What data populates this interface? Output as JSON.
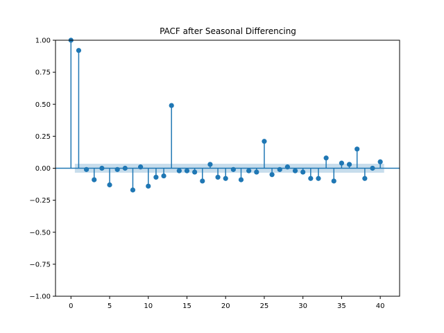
{
  "chart_data": {
    "type": "stem",
    "title": "PACF after Seasonal Differencing",
    "xlabel": "",
    "ylabel": "",
    "xlim": [
      -2,
      42.5
    ],
    "ylim": [
      -1.0,
      1.0
    ],
    "x_ticks": [
      0,
      5,
      10,
      15,
      20,
      25,
      30,
      35,
      40
    ],
    "x_tick_labels": [
      "0",
      "5",
      "10",
      "15",
      "20",
      "25",
      "30",
      "35",
      "40"
    ],
    "y_ticks": [
      -1.0,
      -0.75,
      -0.5,
      -0.25,
      0.0,
      0.25,
      0.5,
      0.75,
      1.0
    ],
    "y_tick_labels": [
      "−1.00",
      "−0.75",
      "−0.50",
      "−0.25",
      "0.00",
      "0.25",
      "0.50",
      "0.75",
      "1.00"
    ],
    "grid": false,
    "legend": "none",
    "series": [
      {
        "x": [
          0,
          1,
          2,
          3,
          4,
          5,
          6,
          7,
          8,
          9,
          10,
          11,
          12,
          13,
          14,
          15,
          16,
          17,
          18,
          19,
          20,
          21,
          22,
          23,
          24,
          25,
          26,
          27,
          28,
          29,
          30,
          31,
          32,
          33,
          34,
          35,
          36,
          37,
          38,
          39,
          40
        ],
        "values": [
          1.0,
          0.92,
          -0.01,
          -0.09,
          0.0,
          -0.13,
          -0.01,
          0.0,
          -0.17,
          0.01,
          -0.14,
          -0.07,
          -0.06,
          0.49,
          -0.02,
          -0.02,
          -0.03,
          -0.1,
          0.03,
          -0.07,
          -0.08,
          -0.01,
          -0.09,
          -0.02,
          -0.03,
          0.21,
          -0.05,
          -0.01,
          0.01,
          -0.02,
          -0.03,
          -0.08,
          -0.08,
          0.08,
          -0.1,
          0.04,
          0.03,
          0.15,
          -0.08,
          0.0,
          0.05
        ]
      }
    ],
    "confidence_band": {
      "x_start": 0.5,
      "x_end": 40.5,
      "lower": -0.035,
      "upper": 0.035
    },
    "colors": {
      "stem": "#1f77b4",
      "band": "#1f77b4",
      "axis": "#000000"
    }
  }
}
